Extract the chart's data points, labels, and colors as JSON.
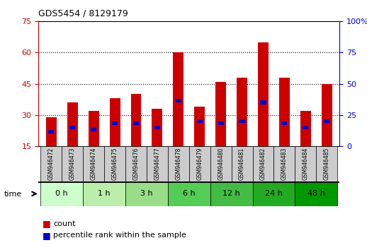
{
  "title": "GDS5454 / 8129179",
  "samples": [
    "GSM946472",
    "GSM946473",
    "GSM946474",
    "GSM946475",
    "GSM946476",
    "GSM946477",
    "GSM946478",
    "GSM946479",
    "GSM946480",
    "GSM946481",
    "GSM946482",
    "GSM946483",
    "GSM946484",
    "GSM946485"
  ],
  "count_values": [
    29,
    36,
    32,
    38,
    40,
    33,
    60,
    34,
    46,
    48,
    65,
    48,
    32,
    45
  ],
  "percentile_values": [
    22,
    24,
    23,
    26,
    26,
    24,
    37,
    27,
    26,
    27,
    36,
    26,
    24,
    27
  ],
  "bar_bottom": 15,
  "time_groups": [
    {
      "label": "0 h",
      "indices": [
        0,
        1
      ]
    },
    {
      "label": "1 h",
      "indices": [
        2,
        3
      ]
    },
    {
      "label": "3 h",
      "indices": [
        4,
        5
      ]
    },
    {
      "label": "6 h",
      "indices": [
        6,
        7
      ]
    },
    {
      "label": "12 h",
      "indices": [
        8,
        9
      ]
    },
    {
      "label": "24 h",
      "indices": [
        10,
        11
      ]
    },
    {
      "label": "48 h",
      "indices": [
        12,
        13
      ]
    }
  ],
  "time_group_colors": [
    "#ccffcc",
    "#bbeeaa",
    "#99dd88",
    "#55cc55",
    "#44bb44",
    "#22aa22",
    "#009900"
  ],
  "ylim_left": [
    15,
    75
  ],
  "ylim_right": [
    0,
    100
  ],
  "yticks_left": [
    15,
    30,
    45,
    60,
    75
  ],
  "yticks_right": [
    0,
    25,
    50,
    75,
    100
  ],
  "count_color": "#cc0000",
  "percentile_color": "#0000cc",
  "bar_width": 0.5,
  "background_color": "#ffffff",
  "left_tick_color": "#cc0000",
  "right_tick_color": "#0000cc",
  "sample_label_bg": "#cccccc"
}
